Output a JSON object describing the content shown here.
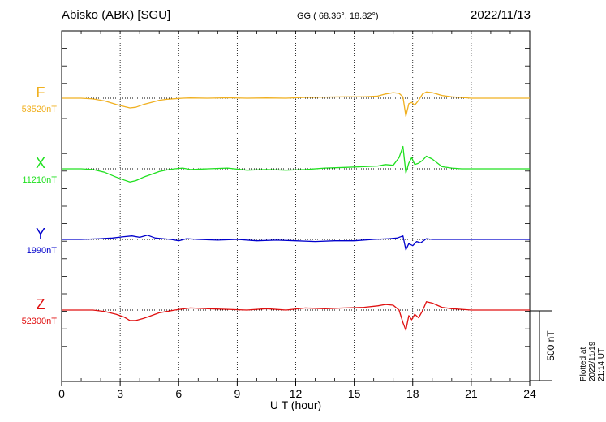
{
  "header": {
    "station": "Abisko (ABK)  [SGU]",
    "coords": "GG ( 68.36°,  18.82°)",
    "date": "2022/11/13"
  },
  "footer": {
    "plotted": "Plotted at 2022/11/19 21:14 UT"
  },
  "chart_data": {
    "type": "line",
    "xlabel": "U T (hour)",
    "xlim": [
      0,
      24
    ],
    "x_ticks": [
      "0",
      "3",
      "6",
      "9",
      "12",
      "15",
      "18",
      "21",
      "24"
    ],
    "scale_bar": {
      "label": "500 nT",
      "value_nT": 500
    },
    "colors": {
      "F": "#f0b020",
      "X": "#20e020",
      "Y": "#0000cc",
      "Z": "#e01010"
    },
    "series": [
      {
        "name": "F",
        "baseline_label": "53520nT",
        "color": "#f0b020",
        "x": [
          0,
          1,
          1.6,
          2.2,
          2.8,
          3.2,
          3.5,
          3.8,
          4.2,
          4.6,
          5.0,
          5.4,
          5.8,
          6.2,
          6.6,
          7.5,
          8.5,
          9.5,
          10.5,
          11.5,
          12.5,
          13.5,
          14.5,
          15.5,
          16.2,
          16.6,
          17.0,
          17.3,
          17.5,
          17.65,
          17.8,
          17.95,
          18.1,
          18.3,
          18.5,
          18.7,
          19.0,
          19.5,
          20.0,
          20.5,
          21,
          22,
          23,
          24
        ],
        "y": [
          0,
          0,
          -5,
          -20,
          -45,
          -60,
          -70,
          -65,
          -45,
          -30,
          -15,
          -8,
          -4,
          0,
          2,
          0,
          3,
          0,
          2,
          0,
          6,
          8,
          10,
          10,
          15,
          30,
          40,
          35,
          10,
          -130,
          -40,
          -30,
          -50,
          -15,
          30,
          45,
          40,
          20,
          10,
          5,
          0,
          0,
          0,
          0
        ]
      },
      {
        "name": "X",
        "baseline_label": "11210nT",
        "color": "#20e020",
        "x": [
          0,
          1,
          1.6,
          2.2,
          2.8,
          3.2,
          3.5,
          3.8,
          4.2,
          4.6,
          5.0,
          5.4,
          5.8,
          6.2,
          6.6,
          7.5,
          8.5,
          9.5,
          10.5,
          11.5,
          12.5,
          13.5,
          14.5,
          15.5,
          16.2,
          16.6,
          17.0,
          17.3,
          17.5,
          17.65,
          17.8,
          17.95,
          18.1,
          18.3,
          18.5,
          18.7,
          19.0,
          19.5,
          20.0,
          20.5,
          21,
          22,
          23,
          24
        ],
        "y": [
          0,
          0,
          -5,
          -25,
          -60,
          -80,
          -95,
          -85,
          -60,
          -40,
          -20,
          -8,
          0,
          5,
          -5,
          0,
          5,
          -10,
          -5,
          -10,
          -5,
          5,
          10,
          15,
          20,
          30,
          25,
          80,
          160,
          -30,
          40,
          80,
          30,
          40,
          60,
          90,
          70,
          15,
          5,
          0,
          0,
          0,
          0,
          0
        ]
      },
      {
        "name": "Y",
        "baseline_label": "1990nT",
        "color": "#0000cc",
        "x": [
          0,
          1,
          2,
          2.6,
          3.2,
          3.6,
          4.0,
          4.4,
          4.8,
          5.2,
          5.6,
          6.0,
          6.4,
          7,
          8,
          9,
          10,
          11,
          12,
          13,
          14,
          15,
          16,
          16.8,
          17.2,
          17.5,
          17.65,
          17.8,
          18.0,
          18.2,
          18.4,
          18.7,
          19,
          20,
          21,
          22,
          23,
          24
        ],
        "y": [
          0,
          0,
          5,
          10,
          20,
          25,
          15,
          30,
          10,
          5,
          0,
          -10,
          5,
          0,
          -5,
          0,
          -10,
          -5,
          -10,
          -15,
          -10,
          -10,
          0,
          5,
          10,
          25,
          -75,
          -30,
          -45,
          -15,
          -25,
          5,
          0,
          0,
          0,
          0,
          0,
          0
        ]
      },
      {
        "name": "Z",
        "baseline_label": "52300nT",
        "color": "#e01010",
        "x": [
          0,
          1,
          1.6,
          2.2,
          2.8,
          3.2,
          3.5,
          3.8,
          4.2,
          4.6,
          5.0,
          5.4,
          5.8,
          6.2,
          6.6,
          7.5,
          8.5,
          9.5,
          10.5,
          11.5,
          12.5,
          13.5,
          14.5,
          15.5,
          16.2,
          16.6,
          17.0,
          17.3,
          17.5,
          17.65,
          17.8,
          17.95,
          18.1,
          18.3,
          18.5,
          18.7,
          19.0,
          19.5,
          20.0,
          20.5,
          21,
          22,
          23,
          24
        ],
        "y": [
          0,
          0,
          0,
          -10,
          -30,
          -50,
          -75,
          -75,
          -60,
          -40,
          -20,
          -10,
          0,
          8,
          15,
          10,
          5,
          0,
          10,
          0,
          15,
          10,
          15,
          20,
          30,
          40,
          35,
          0,
          -90,
          -145,
          -40,
          -70,
          -30,
          -55,
          -5,
          60,
          50,
          20,
          10,
          5,
          0,
          0,
          0,
          0
        ]
      }
    ]
  }
}
